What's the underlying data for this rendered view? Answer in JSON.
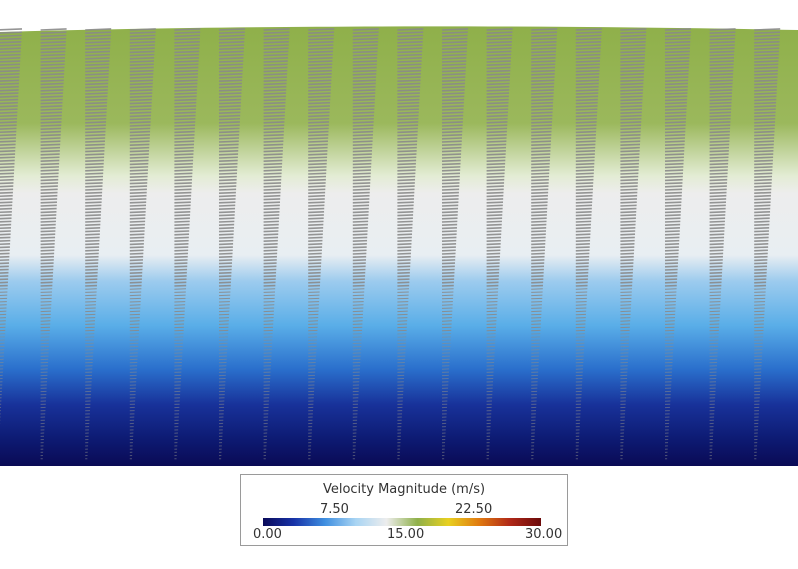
{
  "legend": {
    "title": "Velocity Magnitude (m/s)",
    "ticks_upper": [
      "7.50",
      "22.50"
    ],
    "ticks_lower": [
      "0.00",
      "15.00",
      "30.00"
    ],
    "colorbar_stops": [
      "#0a0a5a",
      "#1833a8",
      "#3f8fe0",
      "#a8d4f3",
      "#ededed",
      "#8fb04a",
      "#e8d020",
      "#e07a10",
      "#b02818",
      "#6b0a0a"
    ]
  },
  "scene": {
    "band_colors": [
      "#8fb04a",
      "#ededed",
      "#5aaee8",
      "#1e52b8",
      "#0c1a70",
      "#0a0a55"
    ],
    "arrow_color": "#8a8a8a"
  }
}
